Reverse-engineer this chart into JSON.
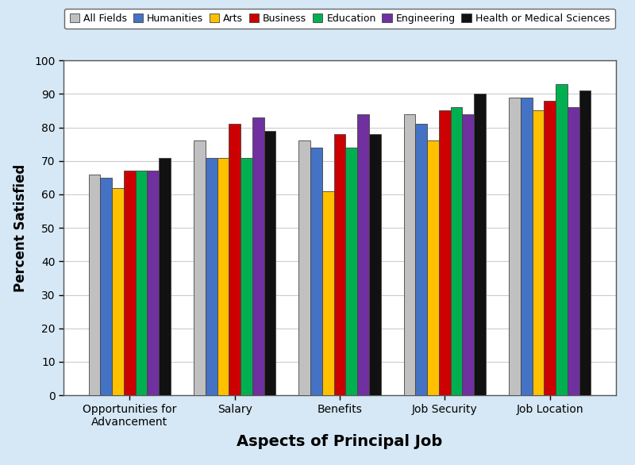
{
  "categories": [
    "Opportunities for\nAdvancement",
    "Salary",
    "Benefits",
    "Job Security",
    "Job Location"
  ],
  "series": [
    {
      "label": "All Fields",
      "color": "#c0c0c0",
      "values": [
        66,
        76,
        76,
        84,
        89
      ]
    },
    {
      "label": "Humanities",
      "color": "#4472c4",
      "values": [
        65,
        71,
        74,
        81,
        89
      ]
    },
    {
      "label": "Arts",
      "color": "#ffc000",
      "values": [
        62,
        71,
        61,
        76,
        85
      ]
    },
    {
      "label": "Business",
      "color": "#cc0000",
      "values": [
        67,
        81,
        78,
        85,
        88
      ]
    },
    {
      "label": "Education",
      "color": "#00b050",
      "values": [
        67,
        71,
        74,
        86,
        93
      ]
    },
    {
      "label": "Engineering",
      "color": "#7030a0",
      "values": [
        67,
        83,
        84,
        84,
        86
      ]
    },
    {
      "label": "Health or Medical Sciences",
      "color": "#111111",
      "values": [
        71,
        79,
        78,
        90,
        91
      ]
    }
  ],
  "xlabel": "Aspects of Principal Job",
  "ylabel": "Percent Satisfied",
  "ylim": [
    0,
    100
  ],
  "yticks": [
    0,
    10,
    20,
    30,
    40,
    50,
    60,
    70,
    80,
    90,
    100
  ],
  "background_color": "#d6e8f5",
  "plot_background_color": "#ffffff",
  "grid_color": "#cccccc",
  "bar_edge_color": "#444444",
  "xlabel_fontsize": 14,
  "ylabel_fontsize": 12,
  "legend_fontsize": 9,
  "tick_fontsize": 10
}
